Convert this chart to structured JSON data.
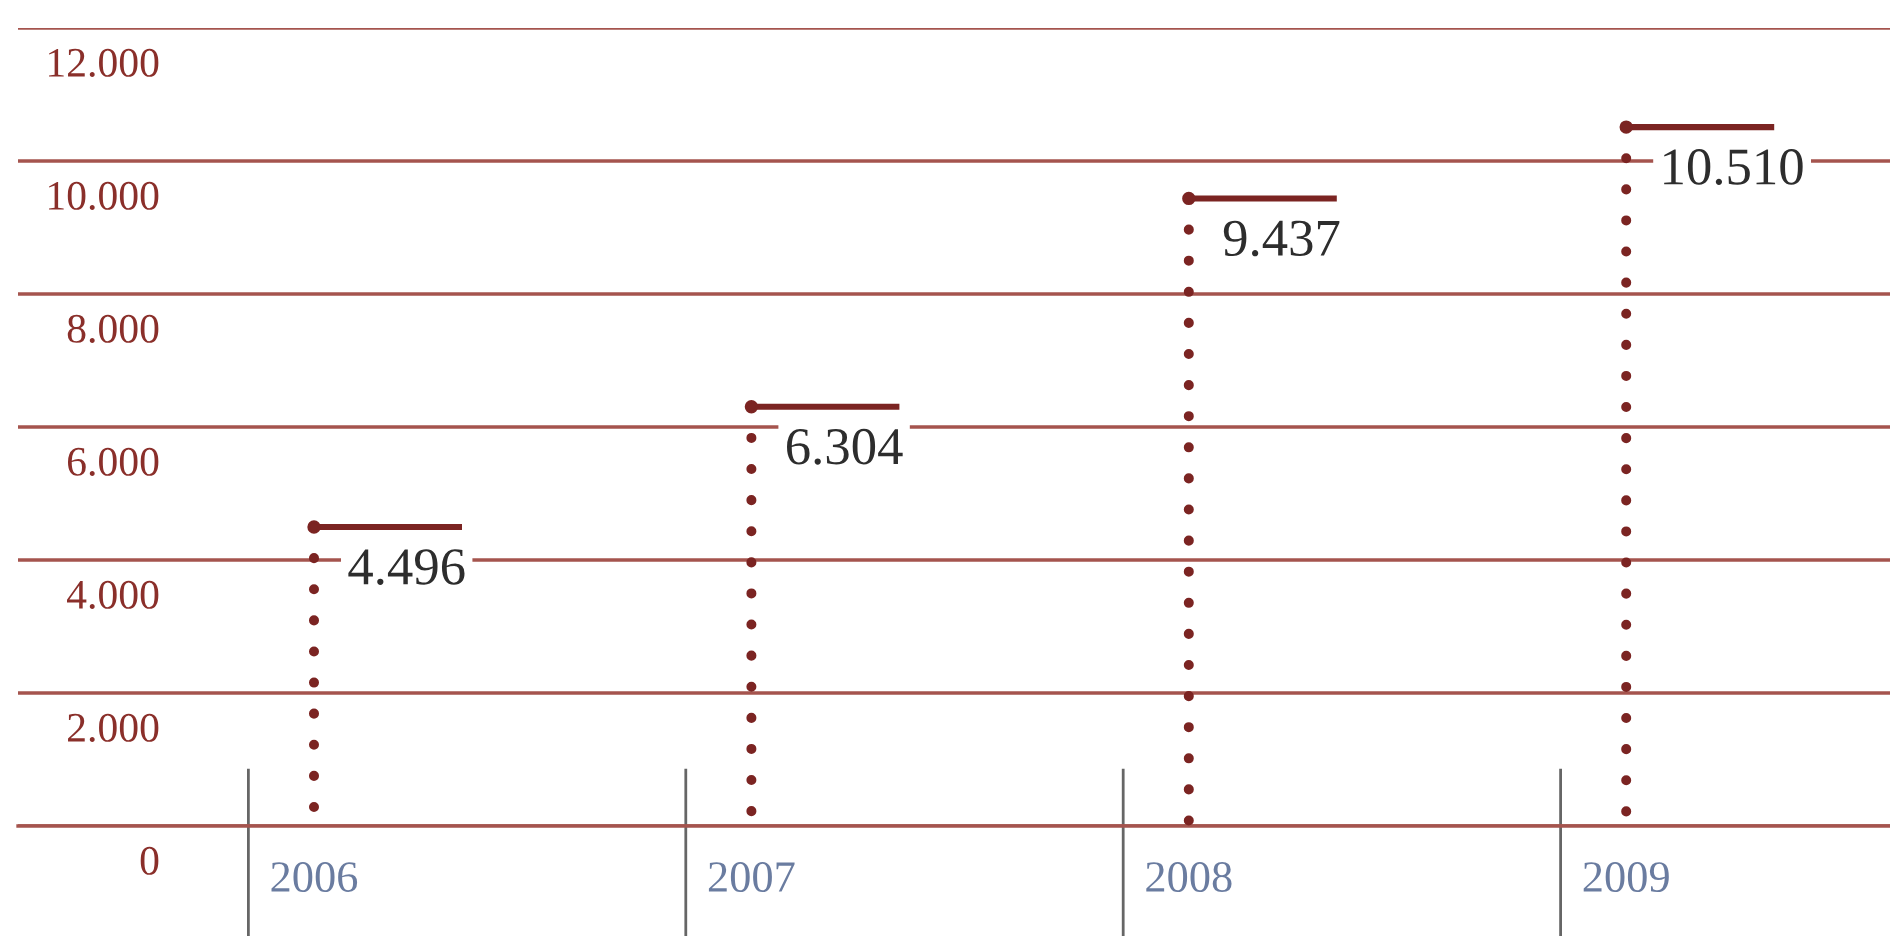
{
  "chart_data": {
    "type": "lollipop",
    "categories": [
      "2006",
      "2007",
      "2008",
      "2009"
    ],
    "values": [
      4496,
      6304,
      9437,
      10510
    ],
    "value_labels": [
      "4.496",
      "6.304",
      "9.437",
      "10.510"
    ],
    "color": "#7b2422",
    "line_style": "dotted",
    "marker": "circle",
    "ylim": [
      0,
      12000
    ],
    "yticks": [
      0,
      {
        "value": 2000,
        "label": "2.000"
      },
      {
        "value": 4000,
        "label": "4.000"
      },
      {
        "value": 6000,
        "label": "6.000"
      },
      {
        "value": 8000,
        "label": "8.000"
      },
      {
        "value": 10000,
        "label": "10.000"
      },
      {
        "value": 12000,
        "label": "12.000"
      }
    ],
    "grid": true
  }
}
